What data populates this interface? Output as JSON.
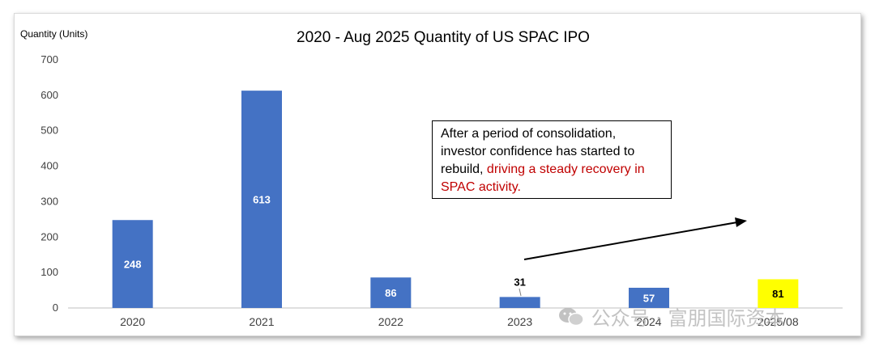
{
  "chart_data": {
    "type": "bar",
    "title": "2020 - Aug 2025 Quantity of US SPAC IPO",
    "ylabel": "Quantity (Units)",
    "xlabel": "",
    "ylim": [
      0,
      700
    ],
    "yticks": [
      0,
      100,
      200,
      300,
      400,
      500,
      600,
      700
    ],
    "categories": [
      "2020",
      "2021",
      "2022",
      "2023",
      "2024",
      "2025/08"
    ],
    "values": [
      248,
      613,
      86,
      31,
      57,
      81
    ],
    "colors": {
      "bar": "#4472c4",
      "highlight_bar": "#ffff00",
      "label_inside": "#ffffff",
      "label_highlight": "#000000"
    },
    "highlight_index": 5
  },
  "callout": {
    "text_plain": "After a period of consolidation, investor confidence has started to rebuild, ",
    "text_highlight": "driving a steady recovery in SPAC activity."
  },
  "watermark": {
    "text": "公众号 · 富朋国际资本",
    "icon": "wechat-icon"
  }
}
